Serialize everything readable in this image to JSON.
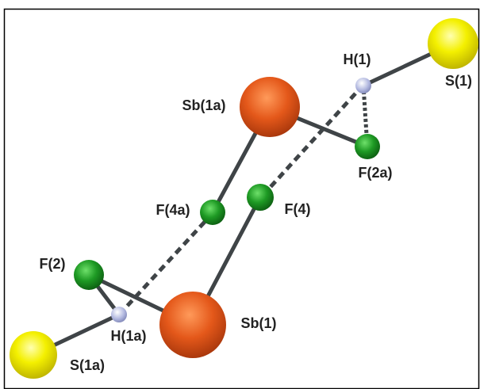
{
  "atoms": [
    {
      "label": "S(1)"
    },
    {
      "label": "H(1)"
    },
    {
      "label": "Sb(1a)"
    },
    {
      "label": "F(2a)"
    },
    {
      "label": "F(4)"
    },
    {
      "label": "F(4a)"
    },
    {
      "label": "F(2)"
    },
    {
      "label": "H(1a)"
    },
    {
      "label": "Sb(1)"
    },
    {
      "label": "S(1a)"
    }
  ]
}
